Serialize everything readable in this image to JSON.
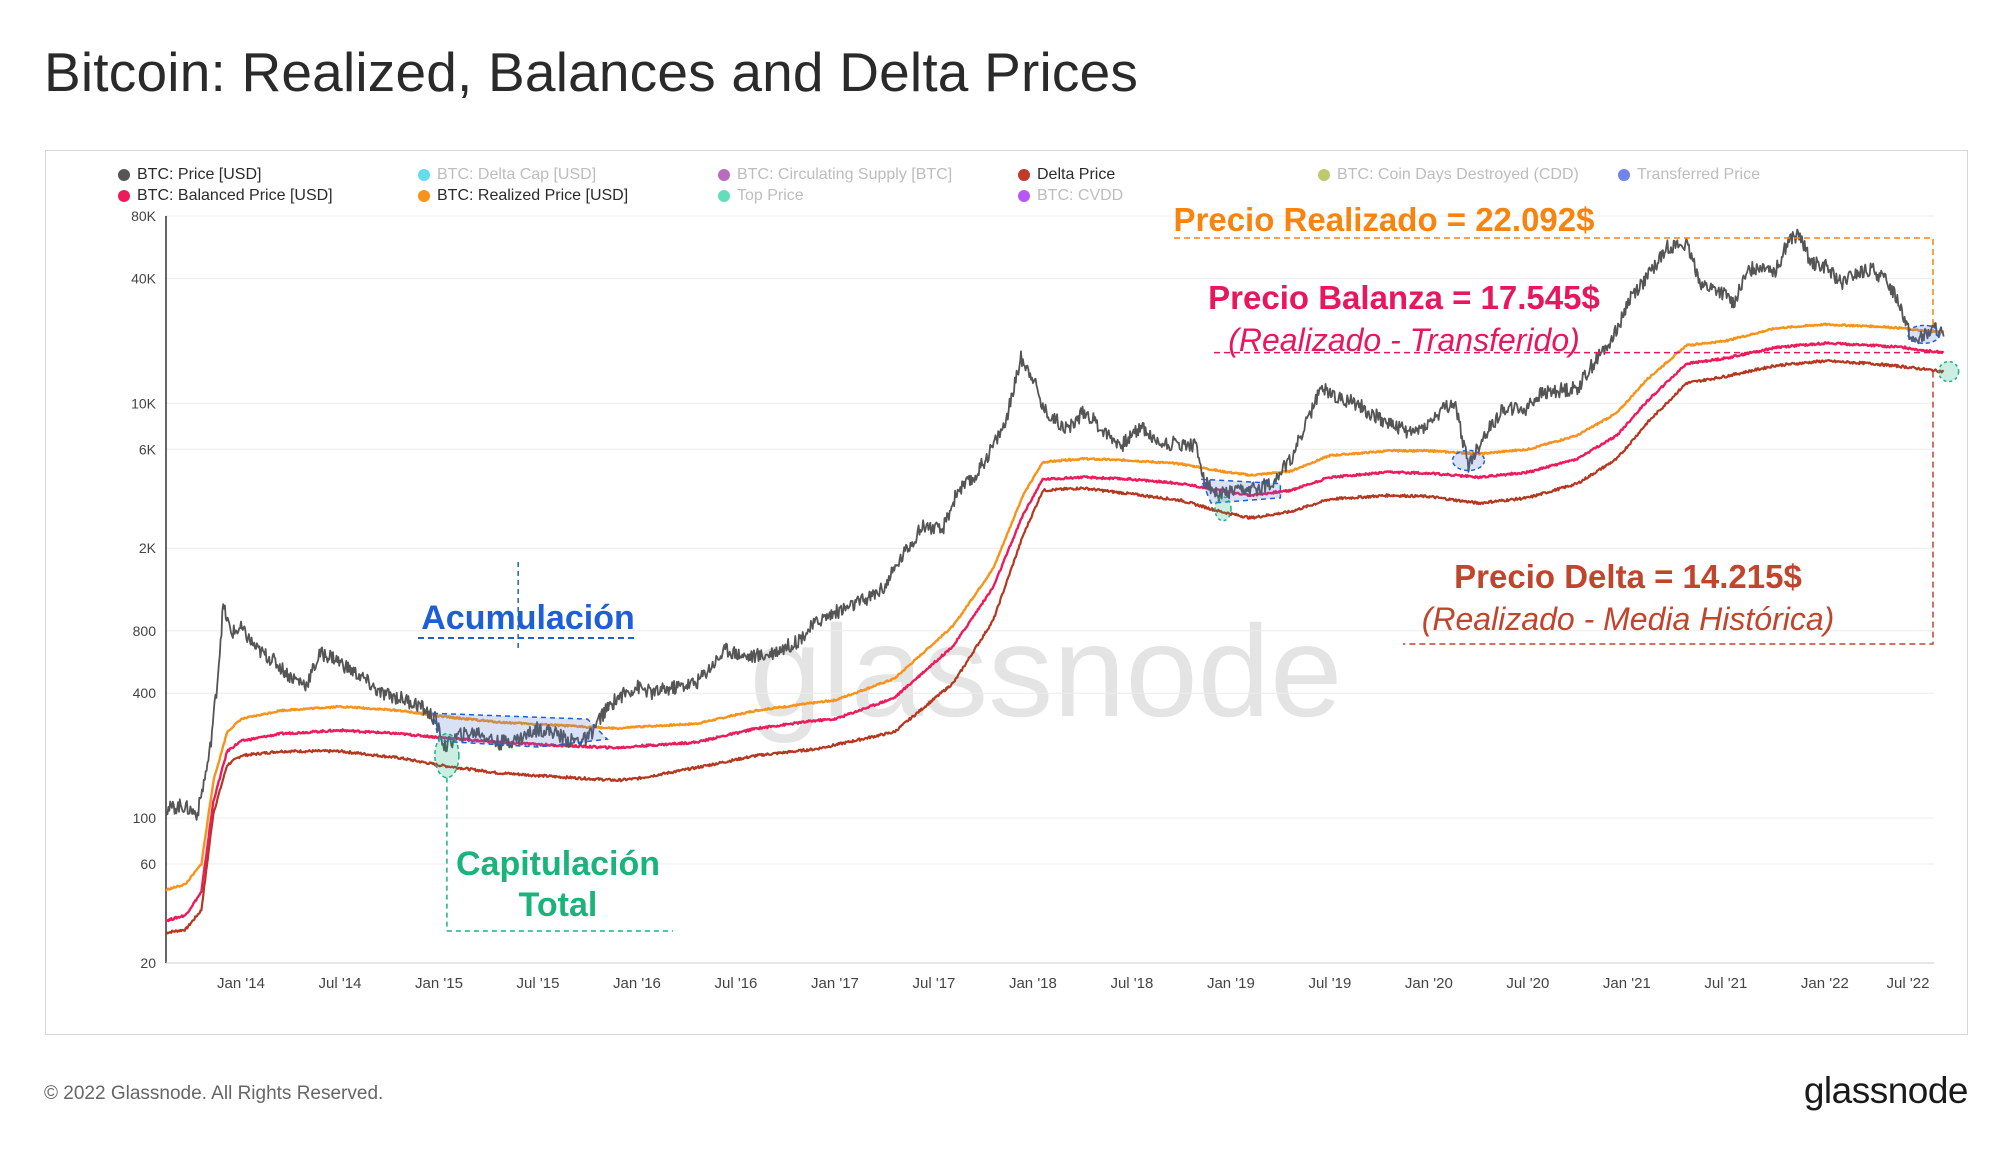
{
  "title": "Bitcoin: Realized, Balances and Delta Prices",
  "footer": {
    "copyright": "© 2022 Glassnode. All Rights Reserved.",
    "logo": "glassnode"
  },
  "watermark": "glassnode",
  "legend": [
    {
      "label": "BTC: Price [USD]",
      "color": "#555555",
      "active": true
    },
    {
      "label": "BTC: Delta Cap [USD]",
      "color": "#2fd0e8",
      "active": false
    },
    {
      "label": "BTC: Circulating Supply [BTC]",
      "color": "#a23aa8",
      "active": false
    },
    {
      "label": "Delta Price",
      "color": "#c0392b",
      "active": true
    },
    {
      "label": "BTC: Coin Days Destroyed (CDD)",
      "color": "#a5b83a",
      "active": false
    },
    {
      "label": "Transferred Price",
      "color": "#3f5ae0",
      "active": false
    },
    {
      "label": "BTC: Balanced Price [USD]",
      "color": "#ee1b5b",
      "active": true
    },
    {
      "label": "BTC: Realized Price [USD]",
      "color": "#f7931a",
      "active": true
    },
    {
      "label": "Top Price",
      "color": "#2ed3a3",
      "active": false
    },
    {
      "label": "BTC: CVDD",
      "color": "#a020f0",
      "active": false
    }
  ],
  "annotations": {
    "realized": "Precio Realizado = 22.092$",
    "balanced": "Precio Balanza = 17.545$",
    "balanced_sub": "(Realizado - Transferido)",
    "delta": "Precio Delta = 14.215$",
    "delta_sub": "(Realizado - Media Histórica)",
    "accumulation": "Acumulación",
    "capitulation_1": "Capitulación",
    "capitulation_2": "Total",
    "question": "?"
  },
  "colors": {
    "price": "#555555",
    "realized": "#f7931a",
    "balanced": "#ee1b5b",
    "delta": "#b5371f",
    "realized_label": "#f7840f",
    "balanced_label": "#e8175d",
    "delta_label": "#c0452c",
    "accumulation": "#1f5fd6",
    "capitulation": "#19b37b"
  },
  "chart_data": {
    "type": "line",
    "scale": "log",
    "ylim": [
      20,
      80000
    ],
    "xlim": [
      "2013-09",
      "2022-08"
    ],
    "yticks": [
      20,
      60,
      100,
      400,
      800,
      2000,
      6000,
      10000,
      40000,
      80000
    ],
    "ytick_labels": [
      "20",
      "60",
      "100",
      "400",
      "800",
      "2K",
      "6K",
      "10K",
      "40K",
      "80K"
    ],
    "xticks": [
      {
        "t": 2014.0,
        "label": "Jan '14"
      },
      {
        "t": 2014.5,
        "label": "Jul '14"
      },
      {
        "t": 2015.0,
        "label": "Jan '15"
      },
      {
        "t": 2015.5,
        "label": "Jul '15"
      },
      {
        "t": 2016.0,
        "label": "Jan '16"
      },
      {
        "t": 2016.5,
        "label": "Jul '16"
      },
      {
        "t": 2017.0,
        "label": "Jan '17"
      },
      {
        "t": 2017.5,
        "label": "Jul '17"
      },
      {
        "t": 2018.0,
        "label": "Jan '18"
      },
      {
        "t": 2018.5,
        "label": "Jul '18"
      },
      {
        "t": 2019.0,
        "label": "Jan '19"
      },
      {
        "t": 2019.5,
        "label": "Jul '19"
      },
      {
        "t": 2020.0,
        "label": "Jan '20"
      },
      {
        "t": 2020.5,
        "label": "Jul '20"
      },
      {
        "t": 2021.0,
        "label": "Jan '21"
      },
      {
        "t": 2021.5,
        "label": "Jul '21"
      },
      {
        "t": 2022.0,
        "label": "Jan '22"
      },
      {
        "t": 2022.42,
        "label": "Jul '22"
      }
    ],
    "series": [
      {
        "name": "BTC: Price [USD]",
        "key": "price",
        "points": [
          [
            2013.62,
            110
          ],
          [
            2013.7,
            115
          ],
          [
            2013.78,
            105
          ],
          [
            2013.84,
            200
          ],
          [
            2013.88,
            450
          ],
          [
            2013.91,
            1050
          ],
          [
            2013.95,
            780
          ],
          [
            2014.0,
            820
          ],
          [
            2014.08,
            650
          ],
          [
            2014.16,
            580
          ],
          [
            2014.25,
            480
          ],
          [
            2014.33,
            440
          ],
          [
            2014.4,
            620
          ],
          [
            2014.46,
            600
          ],
          [
            2014.55,
            520
          ],
          [
            2014.62,
            470
          ],
          [
            2014.7,
            400
          ],
          [
            2014.8,
            380
          ],
          [
            2014.9,
            350
          ],
          [
            2014.98,
            300
          ],
          [
            2015.03,
            220
          ],
          [
            2015.1,
            250
          ],
          [
            2015.2,
            260
          ],
          [
            2015.3,
            230
          ],
          [
            2015.4,
            240
          ],
          [
            2015.5,
            270
          ],
          [
            2015.58,
            260
          ],
          [
            2015.66,
            235
          ],
          [
            2015.75,
            240
          ],
          [
            2015.82,
            310
          ],
          [
            2015.9,
            380
          ],
          [
            2016.0,
            430
          ],
          [
            2016.08,
            400
          ],
          [
            2016.16,
            420
          ],
          [
            2016.3,
            450
          ],
          [
            2016.45,
            650
          ],
          [
            2016.55,
            600
          ],
          [
            2016.65,
            610
          ],
          [
            2016.8,
            700
          ],
          [
            2016.92,
            900
          ],
          [
            2017.0,
            980
          ],
          [
            2017.08,
            1050
          ],
          [
            2017.17,
            1150
          ],
          [
            2017.25,
            1300
          ],
          [
            2017.35,
            1900
          ],
          [
            2017.45,
            2600
          ],
          [
            2017.54,
            2400
          ],
          [
            2017.62,
            3800
          ],
          [
            2017.7,
            4300
          ],
          [
            2017.78,
            5800
          ],
          [
            2017.86,
            8000
          ],
          [
            2017.94,
            16500
          ],
          [
            2018.0,
            13500
          ],
          [
            2018.05,
            9500
          ],
          [
            2018.1,
            8500
          ],
          [
            2018.18,
            7500
          ],
          [
            2018.26,
            9200
          ],
          [
            2018.36,
            7300
          ],
          [
            2018.45,
            6300
          ],
          [
            2018.55,
            7800
          ],
          [
            2018.62,
            6500
          ],
          [
            2018.7,
            6400
          ],
          [
            2018.82,
            6300
          ],
          [
            2018.87,
            4200
          ],
          [
            2018.93,
            3600
          ],
          [
            2019.0,
            3700
          ],
          [
            2019.1,
            3800
          ],
          [
            2019.2,
            4100
          ],
          [
            2019.3,
            5300
          ],
          [
            2019.38,
            8000
          ],
          [
            2019.46,
            12000
          ],
          [
            2019.55,
            10500
          ],
          [
            2019.62,
            10200
          ],
          [
            2019.7,
            9000
          ],
          [
            2019.78,
            8200
          ],
          [
            2019.85,
            7600
          ],
          [
            2019.92,
            7200
          ],
          [
            2020.0,
            8000
          ],
          [
            2020.08,
            9500
          ],
          [
            2020.13,
            10000
          ],
          [
            2020.2,
            5000
          ],
          [
            2020.28,
            7000
          ],
          [
            2020.38,
            9500
          ],
          [
            2020.48,
            9300
          ],
          [
            2020.56,
            11000
          ],
          [
            2020.65,
            11500
          ],
          [
            2020.75,
            11800
          ],
          [
            2020.82,
            15000
          ],
          [
            2020.9,
            19000
          ],
          [
            2020.96,
            24000
          ],
          [
            2021.02,
            33000
          ],
          [
            2021.1,
            40000
          ],
          [
            2021.2,
            57000
          ],
          [
            2021.3,
            58000
          ],
          [
            2021.38,
            37000
          ],
          [
            2021.46,
            35000
          ],
          [
            2021.54,
            31000
          ],
          [
            2021.62,
            44000
          ],
          [
            2021.7,
            47000
          ],
          [
            2021.75,
            43000
          ],
          [
            2021.82,
            62000
          ],
          [
            2021.87,
            64000
          ],
          [
            2021.93,
            48000
          ],
          [
            2022.0,
            46000
          ],
          [
            2022.08,
            38000
          ],
          [
            2022.16,
            42000
          ],
          [
            2022.24,
            44000
          ],
          [
            2022.32,
            38000
          ],
          [
            2022.38,
            30000
          ],
          [
            2022.44,
            20000
          ],
          [
            2022.5,
            21000
          ],
          [
            2022.56,
            23000
          ],
          [
            2022.6,
            21000
          ]
        ]
      },
      {
        "name": "BTC: Realized Price [USD]",
        "key": "realized",
        "points": [
          [
            2013.62,
            45
          ],
          [
            2013.72,
            48
          ],
          [
            2013.8,
            60
          ],
          [
            2013.86,
            150
          ],
          [
            2013.93,
            260
          ],
          [
            2014.0,
            300
          ],
          [
            2014.2,
            330
          ],
          [
            2014.5,
            345
          ],
          [
            2014.8,
            330
          ],
          [
            2015.0,
            310
          ],
          [
            2015.3,
            290
          ],
          [
            2015.6,
            280
          ],
          [
            2015.9,
            270
          ],
          [
            2016.0,
            275
          ],
          [
            2016.3,
            285
          ],
          [
            2016.6,
            330
          ],
          [
            2016.9,
            360
          ],
          [
            2017.0,
            370
          ],
          [
            2017.3,
            470
          ],
          [
            2017.6,
            850
          ],
          [
            2017.8,
            1600
          ],
          [
            2017.95,
            3600
          ],
          [
            2018.05,
            5200
          ],
          [
            2018.25,
            5400
          ],
          [
            2018.5,
            5300
          ],
          [
            2018.75,
            5100
          ],
          [
            2018.95,
            4700
          ],
          [
            2019.1,
            4500
          ],
          [
            2019.3,
            4700
          ],
          [
            2019.5,
            5600
          ],
          [
            2019.8,
            5900
          ],
          [
            2020.0,
            5900
          ],
          [
            2020.25,
            5700
          ],
          [
            2020.5,
            6000
          ],
          [
            2020.75,
            7000
          ],
          [
            2020.95,
            9000
          ],
          [
            2021.1,
            13000
          ],
          [
            2021.3,
            19000
          ],
          [
            2021.5,
            20000
          ],
          [
            2021.75,
            23000
          ],
          [
            2022.0,
            24000
          ],
          [
            2022.25,
            23500
          ],
          [
            2022.4,
            23000
          ],
          [
            2022.5,
            22300
          ],
          [
            2022.6,
            22092
          ]
        ]
      },
      {
        "name": "BTC: Balanced Price [USD]",
        "key": "balanced",
        "points": [
          [
            2013.62,
            32
          ],
          [
            2013.72,
            34
          ],
          [
            2013.8,
            44
          ],
          [
            2013.86,
            120
          ],
          [
            2013.93,
            210
          ],
          [
            2014.0,
            235
          ],
          [
            2014.2,
            255
          ],
          [
            2014.5,
            265
          ],
          [
            2014.8,
            255
          ],
          [
            2015.0,
            245
          ],
          [
            2015.3,
            232
          ],
          [
            2015.6,
            224
          ],
          [
            2015.9,
            218
          ],
          [
            2016.0,
            222
          ],
          [
            2016.3,
            232
          ],
          [
            2016.6,
            270
          ],
          [
            2016.9,
            295
          ],
          [
            2017.0,
            300
          ],
          [
            2017.3,
            380
          ],
          [
            2017.6,
            680
          ],
          [
            2017.8,
            1300
          ],
          [
            2017.95,
            2900
          ],
          [
            2018.05,
            4300
          ],
          [
            2018.25,
            4400
          ],
          [
            2018.5,
            4300
          ],
          [
            2018.75,
            4100
          ],
          [
            2018.95,
            3800
          ],
          [
            2019.1,
            3600
          ],
          [
            2019.3,
            3800
          ],
          [
            2019.5,
            4400
          ],
          [
            2019.8,
            4650
          ],
          [
            2020.0,
            4600
          ],
          [
            2020.25,
            4400
          ],
          [
            2020.5,
            4650
          ],
          [
            2020.75,
            5400
          ],
          [
            2020.95,
            7000
          ],
          [
            2021.1,
            10200
          ],
          [
            2021.3,
            15500
          ],
          [
            2021.5,
            16500
          ],
          [
            2021.75,
            18600
          ],
          [
            2022.0,
            19500
          ],
          [
            2022.25,
            19000
          ],
          [
            2022.4,
            18600
          ],
          [
            2022.5,
            18000
          ],
          [
            2022.6,
            17545
          ]
        ]
      },
      {
        "name": "Delta Price",
        "key": "delta",
        "points": [
          [
            2013.62,
            28
          ],
          [
            2013.72,
            29
          ],
          [
            2013.8,
            36
          ],
          [
            2013.86,
            105
          ],
          [
            2013.93,
            180
          ],
          [
            2014.0,
            200
          ],
          [
            2014.2,
            210
          ],
          [
            2014.5,
            210
          ],
          [
            2014.8,
            195
          ],
          [
            2015.0,
            180
          ],
          [
            2015.3,
            165
          ],
          [
            2015.6,
            158
          ],
          [
            2015.9,
            152
          ],
          [
            2016.0,
            155
          ],
          [
            2016.3,
            175
          ],
          [
            2016.6,
            200
          ],
          [
            2016.9,
            215
          ],
          [
            2017.0,
            225
          ],
          [
            2017.3,
            260
          ],
          [
            2017.6,
            450
          ],
          [
            2017.8,
            900
          ],
          [
            2017.95,
            2300
          ],
          [
            2018.05,
            3800
          ],
          [
            2018.25,
            3900
          ],
          [
            2018.5,
            3650
          ],
          [
            2018.75,
            3400
          ],
          [
            2018.95,
            3000
          ],
          [
            2019.1,
            2800
          ],
          [
            2019.3,
            3000
          ],
          [
            2019.5,
            3450
          ],
          [
            2019.8,
            3600
          ],
          [
            2020.0,
            3550
          ],
          [
            2020.25,
            3300
          ],
          [
            2020.5,
            3500
          ],
          [
            2020.75,
            4100
          ],
          [
            2020.95,
            5400
          ],
          [
            2021.1,
            8000
          ],
          [
            2021.3,
            12500
          ],
          [
            2021.5,
            13500
          ],
          [
            2021.75,
            15200
          ],
          [
            2022.0,
            16000
          ],
          [
            2022.25,
            15500
          ],
          [
            2022.4,
            15000
          ],
          [
            2022.5,
            14600
          ],
          [
            2022.6,
            14215
          ]
        ]
      }
    ]
  }
}
